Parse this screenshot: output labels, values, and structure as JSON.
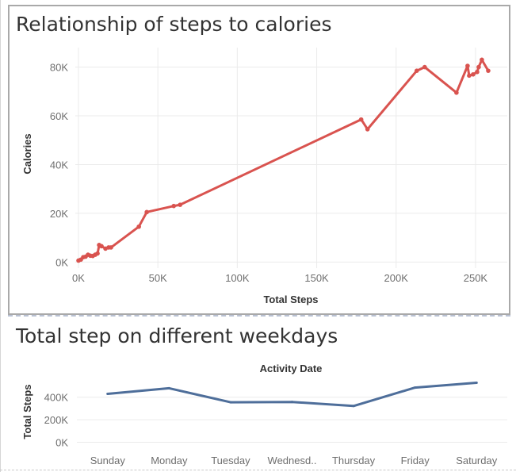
{
  "charts": [
    {
      "title": "Relationship of steps to calories"
    },
    {
      "title": "Total step on different weekdays"
    }
  ],
  "chart_data": [
    {
      "type": "line",
      "title": "Relationship of steps to calories",
      "xlabel": "Total Steps",
      "ylabel": "Calories",
      "xlim": [
        -2000,
        270000
      ],
      "ylim": [
        -2500,
        88000
      ],
      "xticks": [
        0,
        50000,
        100000,
        150000,
        200000,
        250000
      ],
      "xtick_labels": [
        "0K",
        "50K",
        "100K",
        "150K",
        "200K",
        "250K"
      ],
      "yticks": [
        0,
        20000,
        40000,
        60000,
        80000
      ],
      "ytick_labels": [
        "0K",
        "20K",
        "40K",
        "60K",
        "80K"
      ],
      "grid": true,
      "color": "#d9534f",
      "series": [
        {
          "x": [
            0,
            1500,
            3000,
            4500,
            6000,
            7500,
            9000,
            10500,
            12000,
            13000,
            14500,
            17000,
            19000,
            20500,
            38000,
            43000,
            60000,
            64000,
            178000,
            182000,
            213000,
            218000,
            238000,
            245000,
            246000,
            248500,
            251000,
            252000,
            254000,
            258000
          ],
          "y": [
            600,
            1000,
            2000,
            2200,
            3000,
            2600,
            2500,
            3000,
            3500,
            7000,
            6500,
            5500,
            6000,
            6000,
            14500,
            20500,
            23000,
            23500,
            58500,
            54500,
            78500,
            80000,
            69500,
            80500,
            76500,
            77000,
            78000,
            80000,
            83000,
            78500
          ]
        }
      ]
    },
    {
      "type": "line",
      "title": "Total step on different weekdays",
      "xlabel": "Activity Date",
      "ylabel": "Total Steps",
      "categories": [
        "Sunday",
        "Monday",
        "Tuesday",
        "Wednesd..",
        "Thursday",
        "Friday",
        "Saturday"
      ],
      "ylim": [
        -60000,
        560000
      ],
      "yticks": [
        0,
        200000,
        400000
      ],
      "ytick_labels": [
        "0K",
        "200K",
        "400K"
      ],
      "grid": true,
      "color": "#4e6e9a",
      "series": [
        {
          "values": [
            430000,
            480000,
            355000,
            358000,
            322000,
            485000,
            528000
          ]
        }
      ]
    }
  ]
}
